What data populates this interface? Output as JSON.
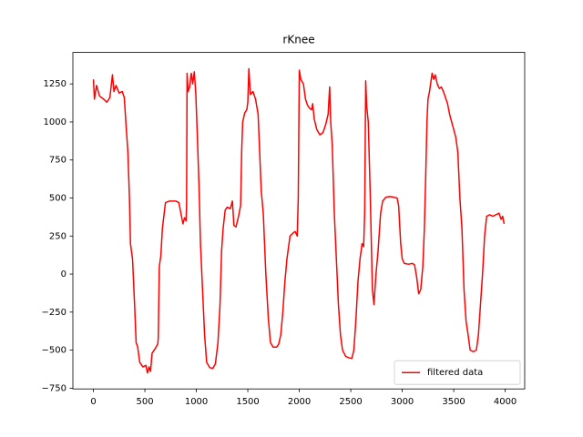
{
  "chart_data": {
    "type": "line",
    "title": "rKnee",
    "x": [
      0,
      10,
      30,
      60,
      100,
      130,
      160,
      185,
      200,
      220,
      250,
      280,
      300,
      315,
      335,
      350,
      360,
      380,
      400,
      415,
      430,
      450,
      480,
      510,
      525,
      540,
      555,
      570,
      600,
      625,
      630,
      640,
      655,
      670,
      700,
      740,
      800,
      830,
      850,
      870,
      885,
      900,
      905,
      910,
      920,
      935,
      950,
      965,
      980,
      995,
      1010,
      1025,
      1040,
      1060,
      1080,
      1100,
      1130,
      1160,
      1185,
      1210,
      1230,
      1245,
      1260,
      1280,
      1300,
      1330,
      1350,
      1365,
      1385,
      1410,
      1430,
      1440,
      1450,
      1470,
      1490,
      1500,
      1510,
      1525,
      1550,
      1575,
      1600,
      1615,
      1630,
      1650,
      1675,
      1700,
      1720,
      1745,
      1780,
      1800,
      1820,
      1840,
      1860,
      1880,
      1910,
      1940,
      1960,
      1980,
      1990,
      2000,
      2015,
      2040,
      2060,
      2080,
      2100,
      2120,
      2130,
      2145,
      2170,
      2200,
      2230,
      2255,
      2280,
      2295,
      2305,
      2320,
      2340,
      2360,
      2380,
      2400,
      2420,
      2450,
      2480,
      2510,
      2530,
      2550,
      2570,
      2590,
      2610,
      2625,
      2635,
      2645,
      2655,
      2670,
      2690,
      2710,
      2725,
      2745,
      2765,
      2790,
      2810,
      2840,
      2880,
      2920,
      2950,
      2965,
      2985,
      3000,
      3020,
      3060,
      3100,
      3120,
      3140,
      3160,
      3180,
      3200,
      3215,
      3230,
      3240,
      3250,
      3265,
      3290,
      3305,
      3320,
      3340,
      3360,
      3380,
      3400,
      3420,
      3440,
      3460,
      3480,
      3500,
      3520,
      3540,
      3560,
      3580,
      3600,
      3620,
      3640,
      3660,
      3690,
      3720,
      3740,
      3760,
      3780,
      3800,
      3820,
      3850,
      3880,
      3910,
      3940,
      3960,
      3975,
      3990
    ],
    "series": [
      {
        "name": "filtered data",
        "color": "#ff0000",
        "values": [
          1280,
          1150,
          1240,
          1170,
          1150,
          1130,
          1160,
          1310,
          1200,
          1240,
          1190,
          1200,
          1160,
          1000,
          800,
          500,
          200,
          100,
          -200,
          -450,
          -480,
          -580,
          -610,
          -600,
          -650,
          -610,
          -640,
          -520,
          -490,
          -460,
          -420,
          50,
          120,
          300,
          470,
          480,
          480,
          470,
          400,
          330,
          370,
          350,
          450,
          1320,
          1200,
          1230,
          1320,
          1250,
          1330,
          1180,
          900,
          600,
          200,
          -100,
          -400,
          -580,
          -615,
          -620,
          -590,
          -450,
          -200,
          150,
          300,
          420,
          440,
          430,
          480,
          320,
          310,
          380,
          450,
          800,
          1000,
          1060,
          1080,
          1130,
          1350,
          1180,
          1200,
          1150,
          1050,
          800,
          550,
          400,
          0,
          -300,
          -450,
          -480,
          -480,
          -460,
          -400,
          -250,
          -50,
          100,
          250,
          270,
          280,
          250,
          500,
          1340,
          1280,
          1250,
          1150,
          1110,
          1090,
          1080,
          1120,
          1020,
          950,
          915,
          930,
          980,
          1050,
          1230,
          1000,
          850,
          400,
          100,
          -200,
          -400,
          -500,
          -540,
          -550,
          -555,
          -500,
          -300,
          -50,
          100,
          200,
          180,
          400,
          1270,
          1100,
          1000,
          500,
          -100,
          -200,
          0,
          150,
          400,
          480,
          505,
          510,
          505,
          500,
          450,
          200,
          100,
          70,
          65,
          70,
          60,
          -20,
          -130,
          -100,
          50,
          300,
          700,
          1000,
          1150,
          1200,
          1320,
          1280,
          1310,
          1250,
          1220,
          1230,
          1200,
          1160,
          1120,
          1050,
          1000,
          950,
          900,
          800,
          500,
          300,
          -100,
          -310,
          -400,
          -500,
          -510,
          -500,
          -400,
          -200,
          0,
          250,
          380,
          390,
          380,
          390,
          400,
          360,
          380,
          330
        ]
      }
    ],
    "xlim": [
      -199.5,
      4189.5
    ],
    "ylim": [
      -755,
      1457
    ],
    "xticks": [
      0,
      500,
      1000,
      1500,
      2000,
      2500,
      3000,
      3500,
      4000
    ],
    "yticks": [
      {
        "value": -750,
        "label": "−750"
      },
      {
        "value": -500,
        "label": "−500"
      },
      {
        "value": -250,
        "label": "−250"
      },
      0,
      250,
      500,
      750,
      1000,
      1250
    ],
    "legend": "lower right"
  }
}
